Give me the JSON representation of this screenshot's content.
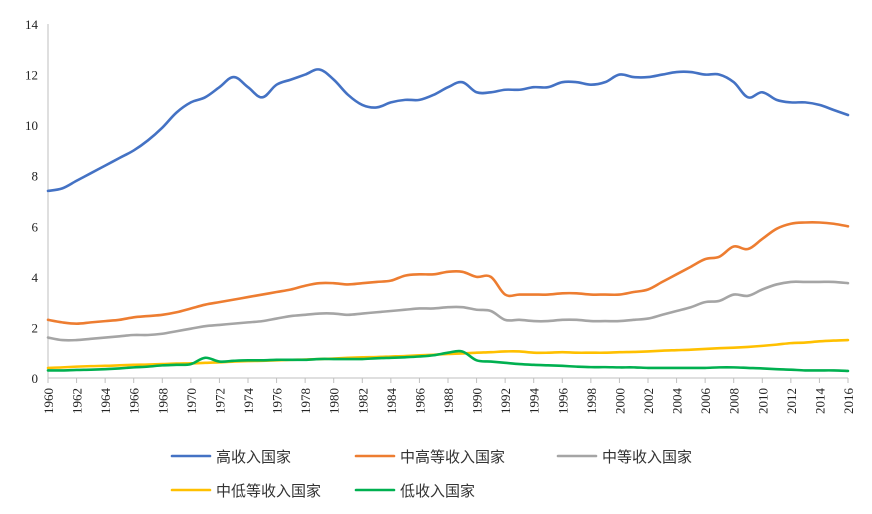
{
  "chart_data": {
    "type": "line",
    "title": "",
    "xlabel": "",
    "ylabel": "",
    "xlim": [
      1960,
      2016
    ],
    "ylim": [
      0,
      14
    ],
    "yticks": [
      0,
      2,
      4,
      6,
      8,
      10,
      12,
      14
    ],
    "xticks": [
      1960,
      1962,
      1964,
      1966,
      1968,
      1970,
      1972,
      1974,
      1976,
      1978,
      1980,
      1982,
      1984,
      1986,
      1988,
      1990,
      1992,
      1994,
      1996,
      1998,
      2000,
      2002,
      2004,
      2006,
      2008,
      2010,
      2012,
      2014,
      2016
    ],
    "grid": false,
    "legend_position": "bottom",
    "x": [
      1960,
      1961,
      1962,
      1963,
      1964,
      1965,
      1966,
      1967,
      1968,
      1969,
      1970,
      1971,
      1972,
      1973,
      1974,
      1975,
      1976,
      1977,
      1978,
      1979,
      1980,
      1981,
      1982,
      1983,
      1984,
      1985,
      1986,
      1987,
      1988,
      1989,
      1990,
      1991,
      1992,
      1993,
      1994,
      1995,
      1996,
      1997,
      1998,
      1999,
      2000,
      2001,
      2002,
      2003,
      2004,
      2005,
      2006,
      2007,
      2008,
      2009,
      2010,
      2011,
      2012,
      2013,
      2014,
      2015,
      2016
    ],
    "series": [
      {
        "name": "高收入国家",
        "color": "#4472C4",
        "values": [
          7.4,
          7.5,
          7.8,
          8.1,
          8.4,
          8.7,
          9.0,
          9.4,
          9.9,
          10.5,
          10.9,
          11.1,
          11.5,
          11.9,
          11.5,
          11.1,
          11.6,
          11.8,
          12.0,
          12.2,
          11.8,
          11.2,
          10.8,
          10.7,
          10.9,
          11.0,
          11.0,
          11.2,
          11.5,
          11.7,
          11.3,
          11.3,
          11.4,
          11.4,
          11.5,
          11.5,
          11.7,
          11.7,
          11.6,
          11.7,
          12.0,
          11.9,
          11.9,
          12.0,
          12.1,
          12.1,
          12.0,
          12.0,
          11.7,
          11.1,
          11.3,
          11.0,
          10.9,
          10.9,
          10.8,
          10.6,
          10.4
        ]
      },
      {
        "name": "中高等收入国家",
        "color": "#ED7D31",
        "values": [
          2.3,
          2.2,
          2.15,
          2.2,
          2.25,
          2.3,
          2.4,
          2.45,
          2.5,
          2.6,
          2.75,
          2.9,
          3.0,
          3.1,
          3.2,
          3.3,
          3.4,
          3.5,
          3.65,
          3.75,
          3.75,
          3.7,
          3.75,
          3.8,
          3.85,
          4.05,
          4.1,
          4.1,
          4.2,
          4.2,
          4.0,
          4.0,
          3.3,
          3.3,
          3.3,
          3.3,
          3.35,
          3.35,
          3.3,
          3.3,
          3.3,
          3.4,
          3.5,
          3.8,
          4.1,
          4.4,
          4.7,
          4.8,
          5.2,
          5.1,
          5.5,
          5.9,
          6.1,
          6.15,
          6.15,
          6.1,
          6.0
        ]
      },
      {
        "name": "中等收入国家",
        "color": "#A5A5A5",
        "values": [
          1.6,
          1.5,
          1.5,
          1.55,
          1.6,
          1.65,
          1.7,
          1.7,
          1.75,
          1.85,
          1.95,
          2.05,
          2.1,
          2.15,
          2.2,
          2.25,
          2.35,
          2.45,
          2.5,
          2.55,
          2.55,
          2.5,
          2.55,
          2.6,
          2.65,
          2.7,
          2.75,
          2.75,
          2.8,
          2.8,
          2.7,
          2.65,
          2.3,
          2.3,
          2.25,
          2.25,
          2.3,
          2.3,
          2.25,
          2.25,
          2.25,
          2.3,
          2.35,
          2.5,
          2.65,
          2.8,
          3.0,
          3.05,
          3.3,
          3.25,
          3.5,
          3.7,
          3.8,
          3.8,
          3.8,
          3.8,
          3.75
        ]
      },
      {
        "name": "中低等收入国家",
        "color": "#FFC000",
        "values": [
          0.4,
          0.42,
          0.45,
          0.47,
          0.48,
          0.5,
          0.52,
          0.53,
          0.55,
          0.57,
          0.58,
          0.6,
          0.62,
          0.65,
          0.67,
          0.68,
          0.7,
          0.72,
          0.73,
          0.75,
          0.77,
          0.8,
          0.82,
          0.83,
          0.85,
          0.87,
          0.9,
          0.92,
          0.95,
          0.97,
          1.0,
          1.02,
          1.05,
          1.05,
          1.0,
          1.0,
          1.02,
          1.0,
          1.0,
          1.0,
          1.02,
          1.03,
          1.05,
          1.08,
          1.1,
          1.12,
          1.15,
          1.18,
          1.2,
          1.23,
          1.27,
          1.32,
          1.38,
          1.4,
          1.45,
          1.48,
          1.5
        ]
      },
      {
        "name": "低收入国家",
        "color": "#00B050",
        "values": [
          0.3,
          0.3,
          0.32,
          0.33,
          0.35,
          0.38,
          0.42,
          0.45,
          0.5,
          0.52,
          0.55,
          0.8,
          0.65,
          0.68,
          0.7,
          0.7,
          0.72,
          0.72,
          0.72,
          0.75,
          0.75,
          0.75,
          0.75,
          0.78,
          0.8,
          0.82,
          0.85,
          0.9,
          1.0,
          1.05,
          0.7,
          0.65,
          0.6,
          0.55,
          0.52,
          0.5,
          0.48,
          0.45,
          0.43,
          0.43,
          0.42,
          0.42,
          0.4,
          0.4,
          0.4,
          0.4,
          0.4,
          0.42,
          0.42,
          0.4,
          0.38,
          0.35,
          0.33,
          0.3,
          0.3,
          0.3,
          0.28
        ]
      }
    ]
  }
}
